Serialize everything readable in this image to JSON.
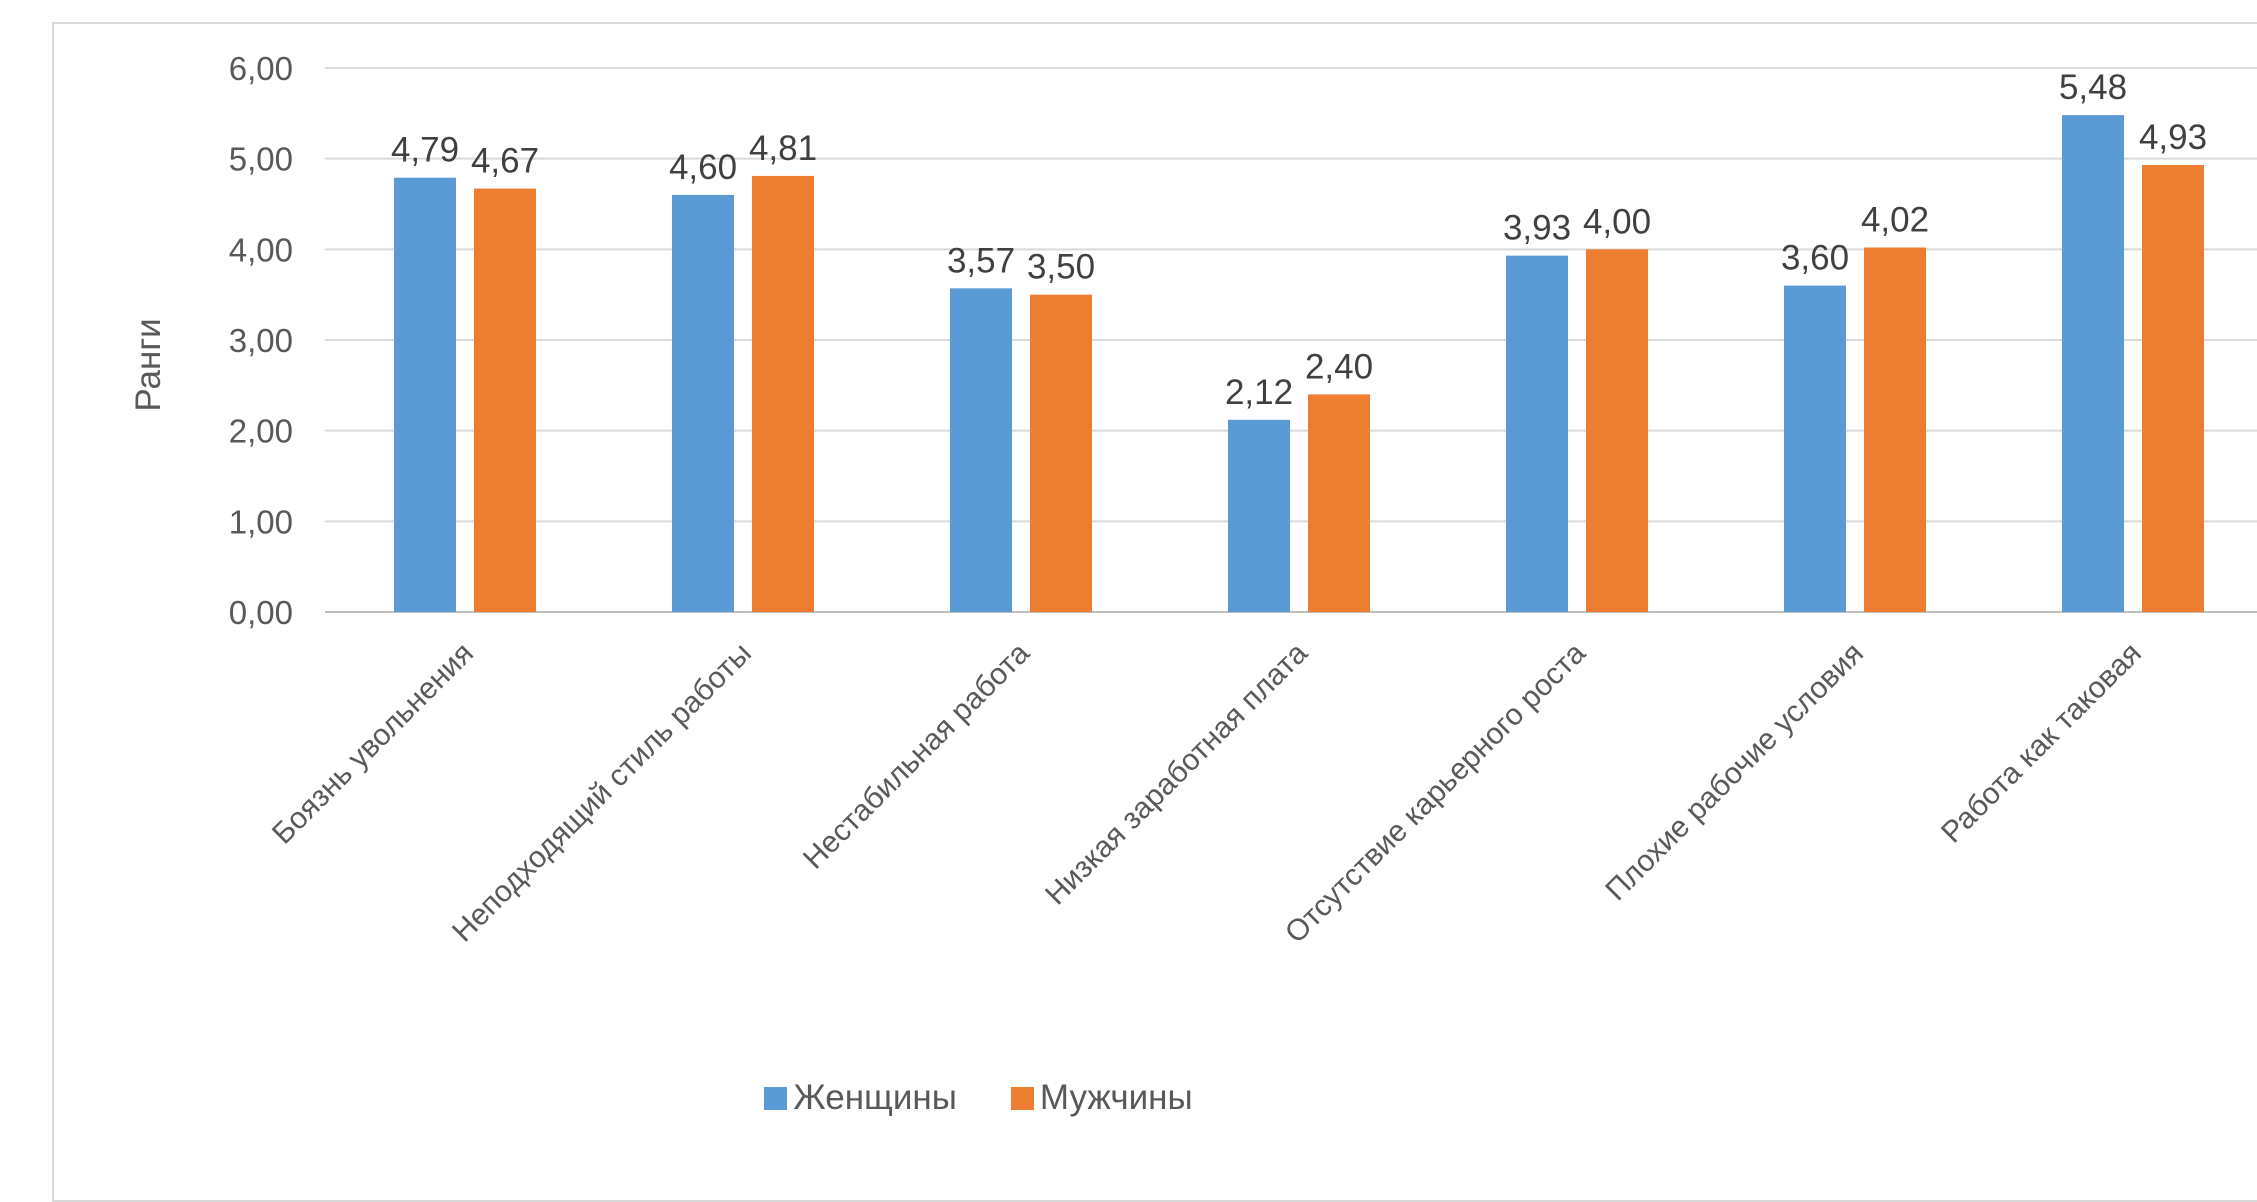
{
  "chart_data": {
    "type": "bar",
    "title": "",
    "xlabel": "",
    "ylabel": "Ранги",
    "ylim": [
      0,
      6
    ],
    "yticks": [
      "0,00",
      "1,00",
      "2,00",
      "3,00",
      "4,00",
      "5,00",
      "6,00"
    ],
    "grid": true,
    "legend_position": "bottom",
    "categories": [
      "Боязнь увольнения",
      "Неподходящий стиль работы",
      "Нестабильная работа",
      "Низкая заработная плата",
      "Отсутствие карьерного роста",
      "Плохие рабочие условия",
      "Работа как таковая"
    ],
    "series": [
      {
        "name": "Женщины",
        "color": "#5b9bd5",
        "values": [
          4.79,
          4.6,
          3.57,
          2.12,
          3.93,
          3.6,
          5.48
        ],
        "labels": [
          "4,79",
          "4,60",
          "3,57",
          "2,12",
          "3,93",
          "3,60",
          "5,48"
        ]
      },
      {
        "name": "Мужчины",
        "color": "#ed7d31",
        "values": [
          4.67,
          4.81,
          3.5,
          2.4,
          4.0,
          4.02,
          4.93
        ],
        "labels": [
          "4,67",
          "4,81",
          "3,50",
          "2,40",
          "4,00",
          "4,02",
          "4,93"
        ]
      }
    ]
  }
}
